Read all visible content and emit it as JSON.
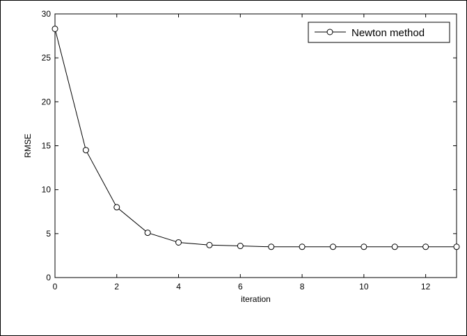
{
  "chart_data": {
    "type": "line",
    "title": "",
    "xlabel": "iteration",
    "ylabel": "RMSE",
    "xlim": [
      0,
      13
    ],
    "ylim": [
      0,
      30
    ],
    "xticks": [
      0,
      2,
      4,
      6,
      8,
      10,
      12
    ],
    "yticks": [
      0,
      5,
      10,
      15,
      20,
      25,
      30
    ],
    "grid": false,
    "legend_position": "top-right",
    "series": [
      {
        "name": "Newton method",
        "marker": "circle",
        "color": "#000000",
        "x": [
          0,
          1,
          2,
          3,
          4,
          5,
          6,
          7,
          8,
          9,
          10,
          11,
          12,
          13
        ],
        "y": [
          28.3,
          14.5,
          8.0,
          5.1,
          4.0,
          3.7,
          3.6,
          3.5,
          3.5,
          3.5,
          3.5,
          3.5,
          3.5,
          3.5
        ]
      }
    ]
  }
}
